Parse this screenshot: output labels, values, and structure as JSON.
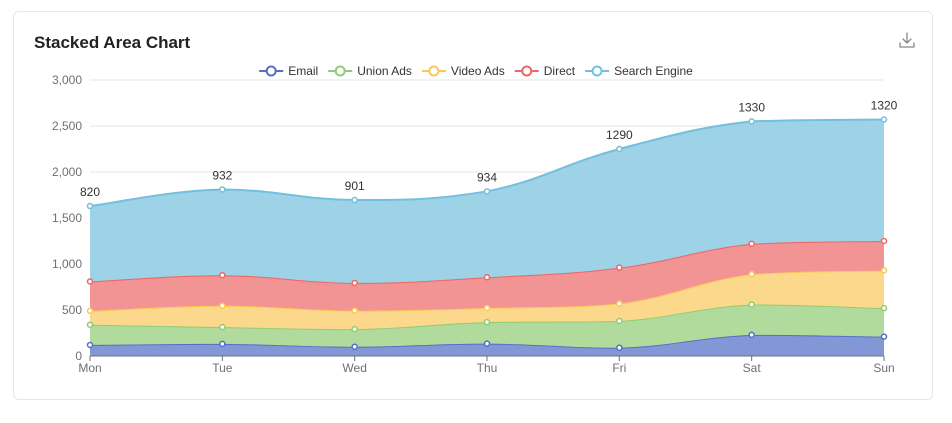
{
  "card": {
    "title": "Stacked Area Chart"
  },
  "download_icon": "download-icon",
  "chart_data": {
    "type": "area",
    "stacked": true,
    "title": "Stacked Area Chart",
    "categories": [
      "Mon",
      "Tue",
      "Wed",
      "Thu",
      "Fri",
      "Sat",
      "Sun"
    ],
    "ylim": [
      0,
      3000
    ],
    "yticks": [
      0,
      500,
      1000,
      1500,
      2000,
      2500,
      3000
    ],
    "ytick_labels": [
      "0",
      "500",
      "1,000",
      "1,500",
      "2,000",
      "2,500",
      "3,000"
    ],
    "grid": true,
    "legend_position": "top-center",
    "series": [
      {
        "name": "Email",
        "color": "#5470c6",
        "fill": "#8397d7",
        "values": [
          120,
          132,
          101,
          134,
          90,
          230,
          210
        ]
      },
      {
        "name": "Union Ads",
        "color": "#91cc75",
        "fill": "#b0db9c",
        "values": [
          220,
          182,
          191,
          234,
          290,
          330,
          310
        ]
      },
      {
        "name": "Video Ads",
        "color": "#fac858",
        "fill": "#fbd88b",
        "values": [
          150,
          232,
          201,
          154,
          190,
          330,
          410
        ]
      },
      {
        "name": "Direct",
        "color": "#ee6666",
        "fill": "#f29494",
        "values": [
          320,
          332,
          301,
          334,
          390,
          330,
          320
        ]
      },
      {
        "name": "Search Engine",
        "color": "#73c0de",
        "fill": "#9dd2e7",
        "values": [
          820,
          932,
          901,
          934,
          1290,
          1330,
          1320
        ],
        "show_labels": true
      }
    ]
  }
}
